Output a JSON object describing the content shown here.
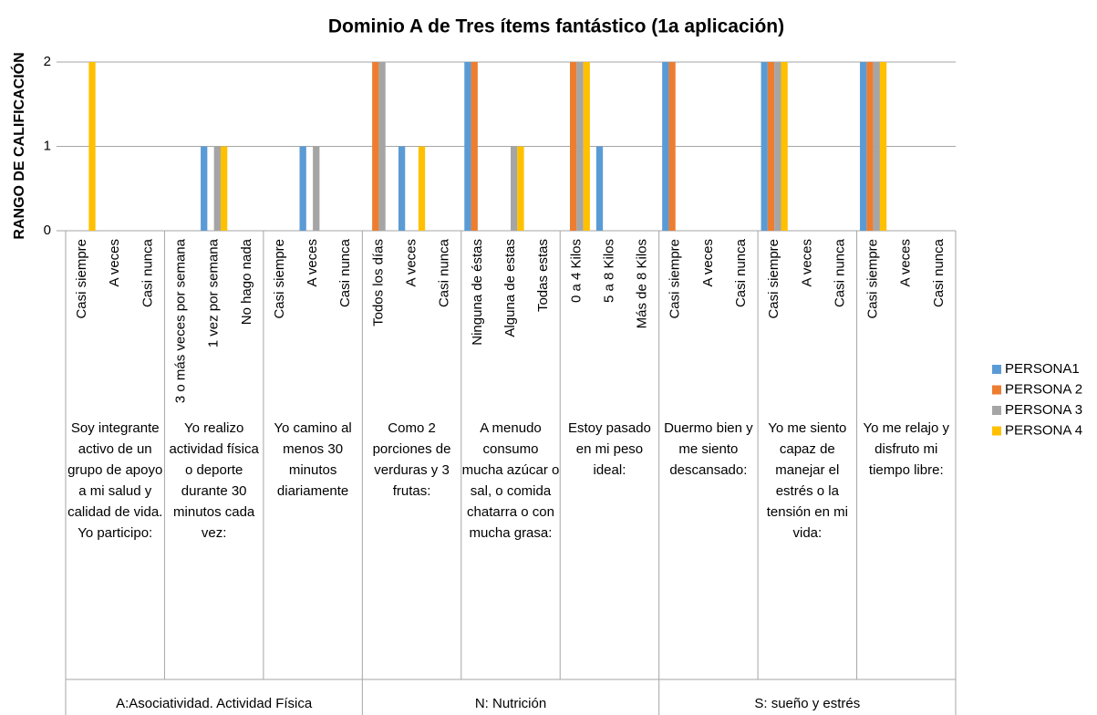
{
  "chart_data": {
    "type": "bar",
    "title": "Dominio A de Tres ítems fantástico (1a aplicación)",
    "y_label": "RANGO DE CALIFICACIÓN",
    "categories": [
      "Casi siempre",
      "A veces",
      "Casi nunca",
      "3 o más veces por semana",
      "1 vez por semana",
      "No hago nada",
      "Casi siempre",
      "A veces",
      "Casi nunca",
      "Todos los días",
      "A veces",
      "Casi nunca",
      "Ninguna de éstas",
      "Alguna de estas",
      "Todas estas",
      "0 a 4 Kilos",
      "5 a 8 Kilos",
      "Más de 8 Kilos",
      "Casi siempre",
      "A veces",
      "Casi nunca",
      "Casi siempre",
      "A veces",
      "Casi nunca",
      "Casi siempre",
      "A veces",
      "Casi nunca"
    ],
    "groups": [
      "Soy integrante activo de un grupo de apoyo a mi salud y calidad de vida. Yo participo:",
      "Yo realizo actividad física o deporte durante 30 minutos cada vez:",
      "Yo camino al menos 30 minutos diariamente",
      "Como 2 porciones de verduras y 3 frutas:",
      "A menudo consumo mucha azúcar o sal, o comida chatarra o con mucha grasa:",
      "Estoy pasado en mi peso ideal:",
      "Duermo bien y me siento descansado:",
      "Yo me siento capaz de manejar el estrés o la tensión en mi vida:",
      "Yo me relajo y disfruto mi tiempo libre:"
    ],
    "sections": [
      "A:Asociatividad. Actividad Física",
      "N: Nutrición",
      "S: sueño y estrés"
    ],
    "series": [
      {
        "name": "PERSONA1",
        "color": "#5b9bd5",
        "values": [
          0,
          0,
          0,
          0,
          1,
          0,
          0,
          1,
          0,
          0,
          1,
          0,
          2,
          0,
          0,
          0,
          1,
          0,
          2,
          0,
          0,
          2,
          0,
          0,
          2,
          0,
          0
        ]
      },
      {
        "name": "PERSONA 2",
        "color": "#ed7d31",
        "values": [
          0,
          0,
          0,
          0,
          0,
          0,
          0,
          0,
          0,
          2,
          0,
          0,
          2,
          0,
          0,
          2,
          0,
          0,
          2,
          0,
          0,
          2,
          0,
          0,
          2,
          0,
          0
        ]
      },
      {
        "name": "PERSONA 3",
        "color": "#a5a5a5",
        "values": [
          0,
          0,
          0,
          0,
          1,
          0,
          0,
          1,
          0,
          2,
          0,
          0,
          0,
          1,
          0,
          2,
          0,
          0,
          0,
          0,
          0,
          2,
          0,
          0,
          2,
          0,
          0
        ]
      },
      {
        "name": "PERSONA 4",
        "color": "#ffc000",
        "values": [
          2,
          0,
          0,
          0,
          1,
          0,
          0,
          0,
          0,
          0,
          1,
          0,
          0,
          1,
          0,
          2,
          0,
          0,
          0,
          0,
          0,
          2,
          0,
          0,
          2,
          0,
          0
        ]
      }
    ],
    "ylim": [
      0,
      2
    ],
    "yticks": [
      0,
      1,
      2
    ],
    "grid": true,
    "legend": "right"
  }
}
